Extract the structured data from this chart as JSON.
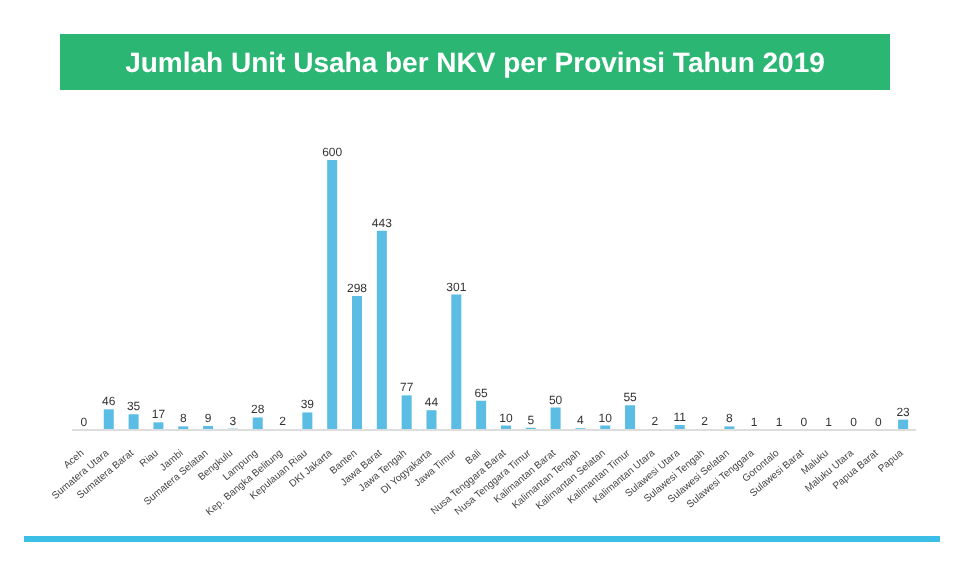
{
  "chart_data": {
    "type": "bar",
    "title": "Jumlah Unit Usaha ber NKV per Provinsi Tahun  2019",
    "categories": [
      "Aceh",
      "Sumatera Utara",
      "Sumatera Barat",
      "Riau",
      "Jambi",
      "Sumatera Selatan",
      "Bengkulu",
      "Lampung",
      "Kep. Bangka Belitung",
      "Kepulauan Riau",
      "DKI Jakarta",
      "Banten",
      "Jawa Barat",
      "Jawa Tengah",
      "DI Yogyakarta",
      "Jawa Timur",
      "Bali",
      "Nusa Tenggara Barat",
      "Nusa Tenggara Timur",
      "Kalimantan Barat",
      "Kalimantan Tengah",
      "Kalimantan Selatan",
      "Kalimantan Timur",
      "Kalimantan Utara",
      "Sulawesi Utara",
      "Sulawesi Tengah",
      "Sulawesi Selatan",
      "Sulawesi Tenggara",
      "Gorontalo",
      "Sulawesi Barat",
      "Maluku",
      "Maluku Utara",
      "Papua Barat",
      "Papua"
    ],
    "values": [
      0,
      46,
      35,
      17,
      8,
      9,
      3,
      28,
      2,
      39,
      600,
      298,
      443,
      77,
      44,
      301,
      65,
      10,
      5,
      50,
      4,
      10,
      55,
      2,
      11,
      2,
      8,
      1,
      1,
      0,
      1,
      0,
      0,
      23
    ],
    "color": "#5bbde4",
    "data_labels": true
  }
}
